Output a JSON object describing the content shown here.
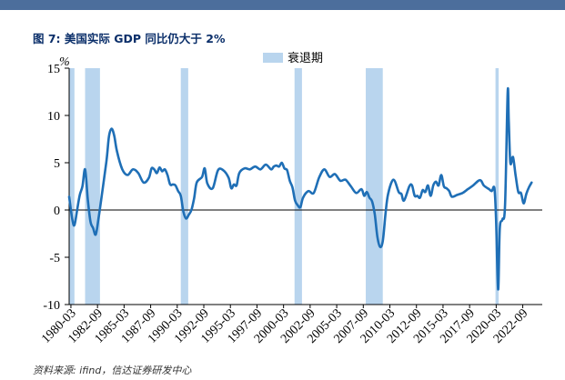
{
  "header": {
    "figure_label": "图 7:",
    "title": "美国实际 GDP 同比仍大于 2%"
  },
  "footer": {
    "source": "资料来源: ifind，信达证券研发中心"
  },
  "colors": {
    "line": "#1f6fb6",
    "recession": "#b9d5ee",
    "topbar": "#4c6e9c",
    "title": "#0b2f6a"
  },
  "chart_data": {
    "type": "line",
    "title": "美国实际 GDP 同比仍大于 2%",
    "ylabel_unit": "%",
    "ylim": [
      -10,
      15
    ],
    "yticks": [
      -10,
      -5,
      0,
      5,
      10,
      15
    ],
    "xlim": [
      1980.0,
      2024.5
    ],
    "xtick_labels": [
      "1980-03",
      "1982-09",
      "1985-03",
      "1987-09",
      "1990-03",
      "1992-09",
      "1995-03",
      "1997-09",
      "2000-03",
      "2002-09",
      "2005-03",
      "2007-09",
      "2010-03",
      "2012-09",
      "2015-03",
      "2017-09",
      "2020-03",
      "2022-09"
    ],
    "legend": [
      {
        "name": "衰退期",
        "kind": "bar"
      }
    ],
    "recession_periods": [
      {
        "start": 1980.0,
        "end": 1980.5
      },
      {
        "start": 1981.5,
        "end": 1982.9
      },
      {
        "start": 1990.5,
        "end": 1991.2
      },
      {
        "start": 2001.2,
        "end": 2001.9
      },
      {
        "start": 2007.9,
        "end": 2009.5
      },
      {
        "start": 2020.1,
        "end": 2020.4
      }
    ],
    "series": [
      {
        "name": "美国实际 GDP 同比 (%)",
        "x": [
          1980.0,
          1980.3,
          1980.5,
          1980.75,
          1981.0,
          1981.25,
          1981.5,
          1981.75,
          1982.0,
          1982.25,
          1982.5,
          1982.75,
          1983.0,
          1983.5,
          1983.75,
          1984.0,
          1984.25,
          1984.5,
          1985.0,
          1985.5,
          1986.0,
          1986.5,
          1987.0,
          1987.5,
          1987.75,
          1988.0,
          1988.25,
          1988.5,
          1988.75,
          1989.0,
          1989.25,
          1989.5,
          1989.75,
          1990.0,
          1990.25,
          1990.5,
          1990.75,
          1991.0,
          1991.25,
          1991.5,
          1991.75,
          1992.0,
          1992.5,
          1992.75,
          1993.0,
          1993.5,
          1994.0,
          1994.5,
          1995.0,
          1995.25,
          1995.5,
          1995.75,
          1996.0,
          1996.5,
          1997.0,
          1997.5,
          1998.0,
          1998.5,
          1999.0,
          1999.25,
          1999.5,
          1999.75,
          2000.0,
          2000.25,
          2000.5,
          2000.75,
          2001.0,
          2001.25,
          2001.5,
          2001.75,
          2002.0,
          2002.5,
          2003.0,
          2003.5,
          2004.0,
          2004.5,
          2005.0,
          2005.5,
          2006.0,
          2006.5,
          2007.0,
          2007.5,
          2007.75,
          2008.0,
          2008.25,
          2008.5,
          2008.75,
          2009.0,
          2009.25,
          2009.5,
          2009.75,
          2010.0,
          2010.5,
          2011.0,
          2011.25,
          2011.5,
          2012.0,
          2012.25,
          2012.5,
          2012.75,
          2013.0,
          2013.25,
          2013.5,
          2013.75,
          2014.0,
          2014.25,
          2014.5,
          2014.75,
          2015.0,
          2015.25,
          2015.5,
          2015.75,
          2016.0,
          2016.5,
          2017.0,
          2017.5,
          2018.0,
          2018.5,
          2018.75,
          2019.0,
          2019.5,
          2019.75,
          2020.0,
          2020.15,
          2020.35,
          2020.5,
          2020.75,
          2021.0,
          2021.25,
          2021.35,
          2021.5,
          2021.75,
          2022.0,
          2022.25,
          2022.5,
          2022.75,
          2023.0,
          2023.25,
          2023.5
        ],
        "values": [
          1.4,
          -1.0,
          -1.6,
          0.0,
          1.6,
          2.5,
          4.3,
          1.2,
          -1.2,
          -1.9,
          -2.6,
          -1.0,
          1.0,
          5.1,
          7.8,
          8.6,
          7.8,
          6.2,
          4.3,
          3.7,
          4.3,
          3.9,
          2.9,
          3.4,
          4.4,
          4.3,
          3.9,
          4.5,
          4.1,
          4.3,
          3.7,
          2.7,
          2.7,
          2.6,
          2.0,
          1.5,
          -0.2,
          -0.9,
          -0.5,
          0.0,
          1.2,
          2.9,
          3.5,
          4.4,
          2.8,
          2.3,
          4.2,
          4.2,
          3.4,
          2.3,
          2.7,
          2.6,
          3.9,
          4.4,
          4.3,
          4.6,
          4.3,
          4.8,
          4.3,
          4.6,
          4.7,
          4.6,
          5.0,
          4.4,
          4.2,
          3.1,
          2.4,
          1.0,
          0.5,
          0.3,
          1.3,
          2.0,
          1.8,
          3.4,
          4.3,
          3.5,
          3.8,
          3.1,
          3.2,
          2.5,
          1.8,
          2.2,
          1.5,
          1.9,
          1.3,
          0.9,
          -0.5,
          -2.9,
          -3.9,
          -3.3,
          -0.5,
          1.7,
          3.2,
          1.9,
          1.7,
          1.0,
          2.5,
          2.6,
          1.5,
          1.5,
          1.3,
          2.1,
          1.9,
          2.6,
          1.5,
          2.6,
          3.0,
          2.6,
          3.7,
          2.5,
          2.3,
          2.0,
          1.4,
          1.6,
          1.8,
          2.2,
          2.6,
          3.1,
          3.1,
          2.6,
          2.2,
          2.0,
          2.3,
          -0.9,
          -8.4,
          -2.0,
          -1.0,
          0.5,
          12.5,
          9.4,
          5.0,
          5.6,
          3.6,
          1.9,
          1.8,
          0.7,
          1.7,
          2.4,
          2.9
        ]
      }
    ]
  }
}
